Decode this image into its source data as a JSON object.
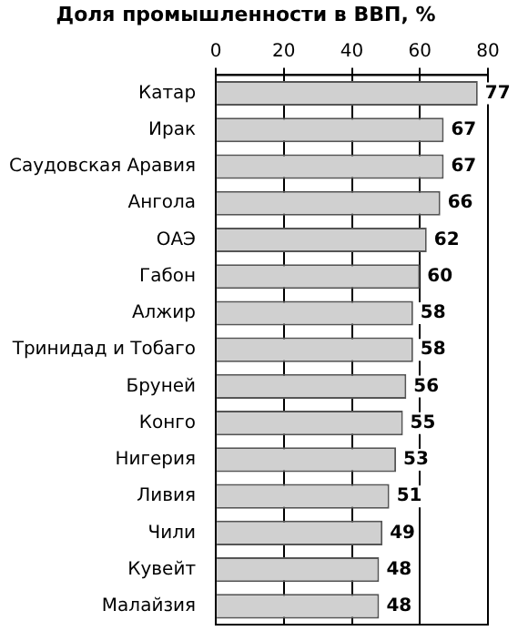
{
  "chart_data": {
    "type": "bar",
    "orientation": "horizontal",
    "title": "Доля промышленности в ВВП, %",
    "categories": [
      "Катар",
      "Ирак",
      "Саудовская Аравия",
      "Ангола",
      "ОАЭ",
      "Габон",
      "Алжир",
      "Тринидад и Тобаго",
      "Бруней",
      "Конго",
      "Нигерия",
      "Ливия",
      "Чили",
      "Кувейт",
      "Малайзия"
    ],
    "values": [
      77,
      67,
      67,
      66,
      62,
      60,
      58,
      58,
      56,
      55,
      53,
      51,
      49,
      48,
      48
    ],
    "color": "#d0d0d0",
    "xlim": [
      0,
      80
    ],
    "xticks": [
      0,
      20,
      40,
      60,
      80
    ],
    "grid": "x",
    "data_labels": true,
    "legend": false
  }
}
